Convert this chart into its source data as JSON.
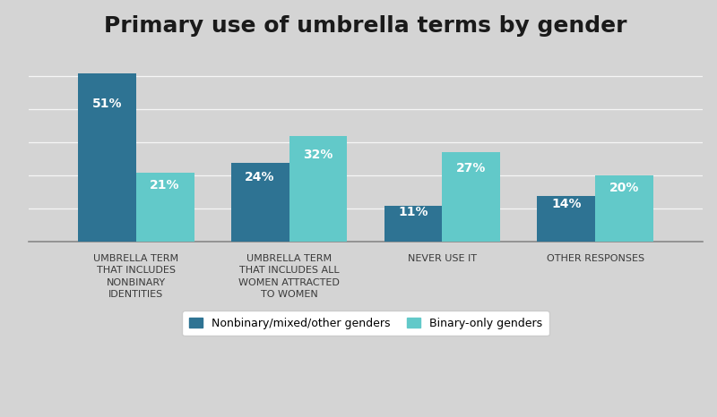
{
  "title": "Primary use of umbrella terms by gender",
  "categories": [
    "UMBRELLA TERM\nTHAT INCLUDES\nNONBINARY\nIDENTITIES",
    "UMBRELLA TERM\nTHAT INCLUDES ALL\nWOMEN ATTRACTED\nTO WOMEN",
    "NEVER USE IT",
    "OTHER RESPONSES"
  ],
  "series": {
    "Nonbinary/mixed/other genders": [
      51,
      24,
      11,
      14
    ],
    "Binary-only genders": [
      21,
      32,
      27,
      20
    ]
  },
  "colors": {
    "Nonbinary/mixed/other genders": "#2e7393",
    "Binary-only genders": "#62c9c9"
  },
  "bar_labels": {
    "Nonbinary/mixed/other genders": [
      "51%",
      "24%",
      "11%",
      "14%"
    ],
    "Binary-only genders": [
      "21%",
      "32%",
      "27%",
      "20%"
    ]
  },
  "ylim": [
    0,
    58
  ],
  "title_fontsize": 18,
  "label_fontsize": 10,
  "tick_fontsize": 8,
  "bar_width": 0.38,
  "background_color": "#d4d4d4"
}
